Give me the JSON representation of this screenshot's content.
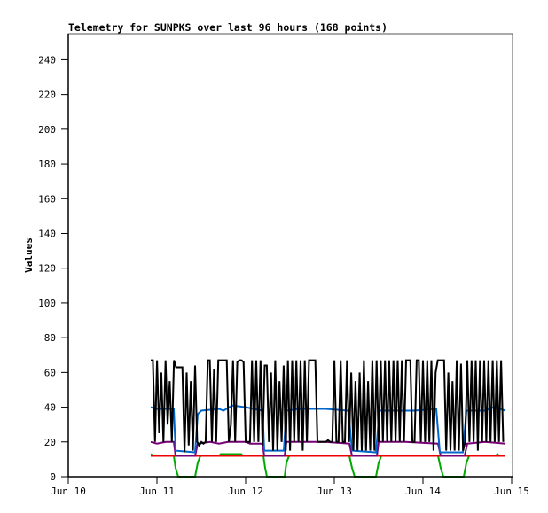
{
  "chart_data": {
    "type": "line",
    "title": "Telemetry for SUNPKS over last 96 hours (168 points)",
    "xlabel": "",
    "ylabel": "Values",
    "xlim": [
      10,
      15
    ],
    "ylim": [
      0,
      255
    ],
    "grid": false,
    "x_ticks": [
      {
        "value": 10,
        "label": "Jun 10"
      },
      {
        "value": 11,
        "label": "Jun 11"
      },
      {
        "value": 12,
        "label": "Jun 12"
      },
      {
        "value": 13,
        "label": "Jun 13"
      },
      {
        "value": 14,
        "label": "Jun 14"
      },
      {
        "value": 15,
        "label": "Jun 15"
      }
    ],
    "y_ticks": [
      0,
      20,
      40,
      60,
      80,
      100,
      120,
      140,
      160,
      180,
      200,
      220,
      240
    ],
    "series": [
      {
        "name": "green",
        "color": "#00aa00",
        "points": [
          [
            10.93,
            13
          ],
          [
            10.96,
            12
          ],
          [
            11.19,
            12
          ],
          [
            11.21,
            5
          ],
          [
            11.24,
            0
          ],
          [
            11.43,
            0
          ],
          [
            11.46,
            8
          ],
          [
            11.49,
            12
          ],
          [
            11.7,
            12
          ],
          [
            11.72,
            13
          ],
          [
            11.95,
            13
          ],
          [
            11.97,
            12
          ],
          [
            12.2,
            12
          ],
          [
            12.22,
            5
          ],
          [
            12.24,
            0
          ],
          [
            12.44,
            0
          ],
          [
            12.46,
            8
          ],
          [
            12.49,
            12
          ],
          [
            13.17,
            12
          ],
          [
            13.2,
            5
          ],
          [
            13.23,
            0
          ],
          [
            13.47,
            0
          ],
          [
            13.5,
            8
          ],
          [
            13.53,
            12
          ],
          [
            14.17,
            12
          ],
          [
            14.2,
            5
          ],
          [
            14.23,
            0
          ],
          [
            14.46,
            0
          ],
          [
            14.49,
            8
          ],
          [
            14.52,
            12
          ],
          [
            14.82,
            12
          ],
          [
            14.84,
            13
          ],
          [
            14.86,
            12
          ],
          [
            14.93,
            12
          ]
        ]
      },
      {
        "name": "red",
        "color": "#ee0000",
        "points": [
          [
            10.93,
            12
          ],
          [
            11.2,
            12
          ],
          [
            11.45,
            12
          ],
          [
            11.7,
            12
          ],
          [
            12.2,
            12
          ],
          [
            12.45,
            12
          ],
          [
            13.2,
            12
          ],
          [
            13.5,
            12
          ],
          [
            14.2,
            12
          ],
          [
            14.47,
            12
          ],
          [
            14.93,
            12
          ]
        ]
      },
      {
        "name": "purple",
        "color": "#770077",
        "points": [
          [
            10.93,
            20
          ],
          [
            11.0,
            19
          ],
          [
            11.1,
            20
          ],
          [
            11.19,
            20
          ],
          [
            11.21,
            12
          ],
          [
            11.43,
            12
          ],
          [
            11.46,
            19
          ],
          [
            11.6,
            20
          ],
          [
            11.7,
            19
          ],
          [
            11.8,
            20
          ],
          [
            12.0,
            20
          ],
          [
            12.05,
            19
          ],
          [
            12.19,
            19
          ],
          [
            12.21,
            12
          ],
          [
            12.44,
            12
          ],
          [
            12.46,
            20
          ],
          [
            12.7,
            20
          ],
          [
            12.9,
            20
          ],
          [
            13.17,
            19
          ],
          [
            13.2,
            12
          ],
          [
            13.48,
            12
          ],
          [
            13.5,
            20
          ],
          [
            13.8,
            20
          ],
          [
            14.17,
            19
          ],
          [
            14.2,
            12
          ],
          [
            14.47,
            12
          ],
          [
            14.5,
            19
          ],
          [
            14.7,
            20
          ],
          [
            14.93,
            19
          ]
        ]
      },
      {
        "name": "blue",
        "color": "#0066cc",
        "points": [
          [
            10.93,
            40
          ],
          [
            11.0,
            39
          ],
          [
            11.1,
            39
          ],
          [
            11.19,
            39
          ],
          [
            11.21,
            15
          ],
          [
            11.43,
            14
          ],
          [
            11.46,
            36
          ],
          [
            11.5,
            38
          ],
          [
            11.7,
            39
          ],
          [
            11.75,
            38
          ],
          [
            11.85,
            41
          ],
          [
            12.0,
            40
          ],
          [
            12.19,
            38
          ],
          [
            12.21,
            15
          ],
          [
            12.43,
            15
          ],
          [
            12.46,
            38
          ],
          [
            12.6,
            39
          ],
          [
            12.9,
            39
          ],
          [
            13.16,
            38
          ],
          [
            13.2,
            15
          ],
          [
            13.47,
            14
          ],
          [
            13.51,
            38
          ],
          [
            13.7,
            38
          ],
          [
            13.9,
            38
          ],
          [
            14.15,
            39
          ],
          [
            14.19,
            14
          ],
          [
            14.45,
            14
          ],
          [
            14.49,
            38
          ],
          [
            14.7,
            38
          ],
          [
            14.8,
            40
          ],
          [
            14.93,
            38
          ]
        ]
      },
      {
        "name": "black",
        "color": "#000000",
        "start": 10.93,
        "step": 0.0238,
        "values": [
          67,
          67,
          20,
          67,
          25,
          60,
          20,
          67,
          30,
          55,
          20,
          67,
          63,
          63,
          63,
          63,
          14,
          60,
          18,
          55,
          15,
          64,
          20,
          18,
          20,
          19,
          20,
          67,
          67,
          20,
          62,
          20,
          67,
          67,
          67,
          67,
          67,
          20,
          30,
          67,
          20,
          66,
          67,
          67,
          66,
          20,
          20,
          20,
          67,
          20,
          67,
          20,
          67,
          18,
          64,
          64,
          20,
          60,
          15,
          67,
          15,
          55,
          20,
          64,
          15,
          67,
          15,
          67,
          20,
          67,
          20,
          67,
          15,
          67,
          20,
          67,
          67,
          67,
          67,
          20,
          20,
          20,
          20,
          20,
          21,
          20,
          20,
          67,
          20,
          20,
          67,
          20,
          20,
          67,
          20,
          60,
          15,
          55,
          15,
          60,
          15,
          67,
          15,
          55,
          15,
          67,
          15,
          67,
          20,
          67,
          20,
          67,
          20,
          67,
          20,
          67,
          20,
          67,
          20,
          67,
          20,
          67,
          67,
          67,
          20,
          20,
          67,
          67,
          20,
          67,
          20,
          67,
          20,
          67,
          15,
          60,
          67,
          67,
          67,
          67,
          15,
          60,
          15,
          55,
          15,
          67,
          15,
          65,
          15,
          20,
          67,
          20,
          67,
          20,
          67,
          15,
          67,
          20,
          67,
          20,
          67,
          20,
          67,
          20,
          67,
          20,
          67,
          20
        ]
      }
    ]
  }
}
